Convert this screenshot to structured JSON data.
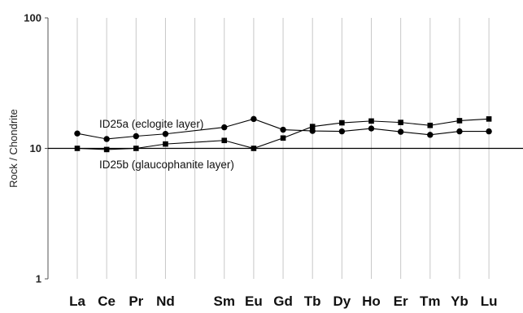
{
  "chart_data": {
    "type": "line",
    "yscale": "log",
    "ylim": [
      1,
      100
    ],
    "ylabel": "Rock / Chondrite",
    "yticks": [
      "100",
      "10",
      "1"
    ],
    "grid": "vertical",
    "categories": [
      "La",
      "Ce",
      "Pr",
      "Nd",
      "Sm",
      "Eu",
      "Gd",
      "Tb",
      "Dy",
      "Ho",
      "Er",
      "Tm",
      "Yb",
      "Lu"
    ],
    "category_slots": [
      0,
      1,
      2,
      3,
      5,
      6,
      7,
      8,
      9,
      10,
      11,
      12,
      13,
      14
    ],
    "series": [
      {
        "name": "ID25a (eclogite layer)",
        "marker": "circle",
        "values": [
          13.0,
          11.8,
          12.4,
          12.9,
          14.5,
          16.8,
          13.9,
          13.6,
          13.5,
          14.2,
          13.4,
          12.7,
          13.5,
          13.5
        ]
      },
      {
        "name": "ID25b (glaucophanite layer)",
        "marker": "square",
        "values": [
          10.0,
          9.8,
          10.0,
          10.8,
          11.5,
          10.0,
          12.0,
          14.7,
          15.7,
          16.2,
          15.8,
          15.0,
          16.3,
          16.8
        ]
      }
    ],
    "annotations": [
      "ID25a (eclogite layer)",
      "ID25b (glaucophanite layer)"
    ]
  }
}
